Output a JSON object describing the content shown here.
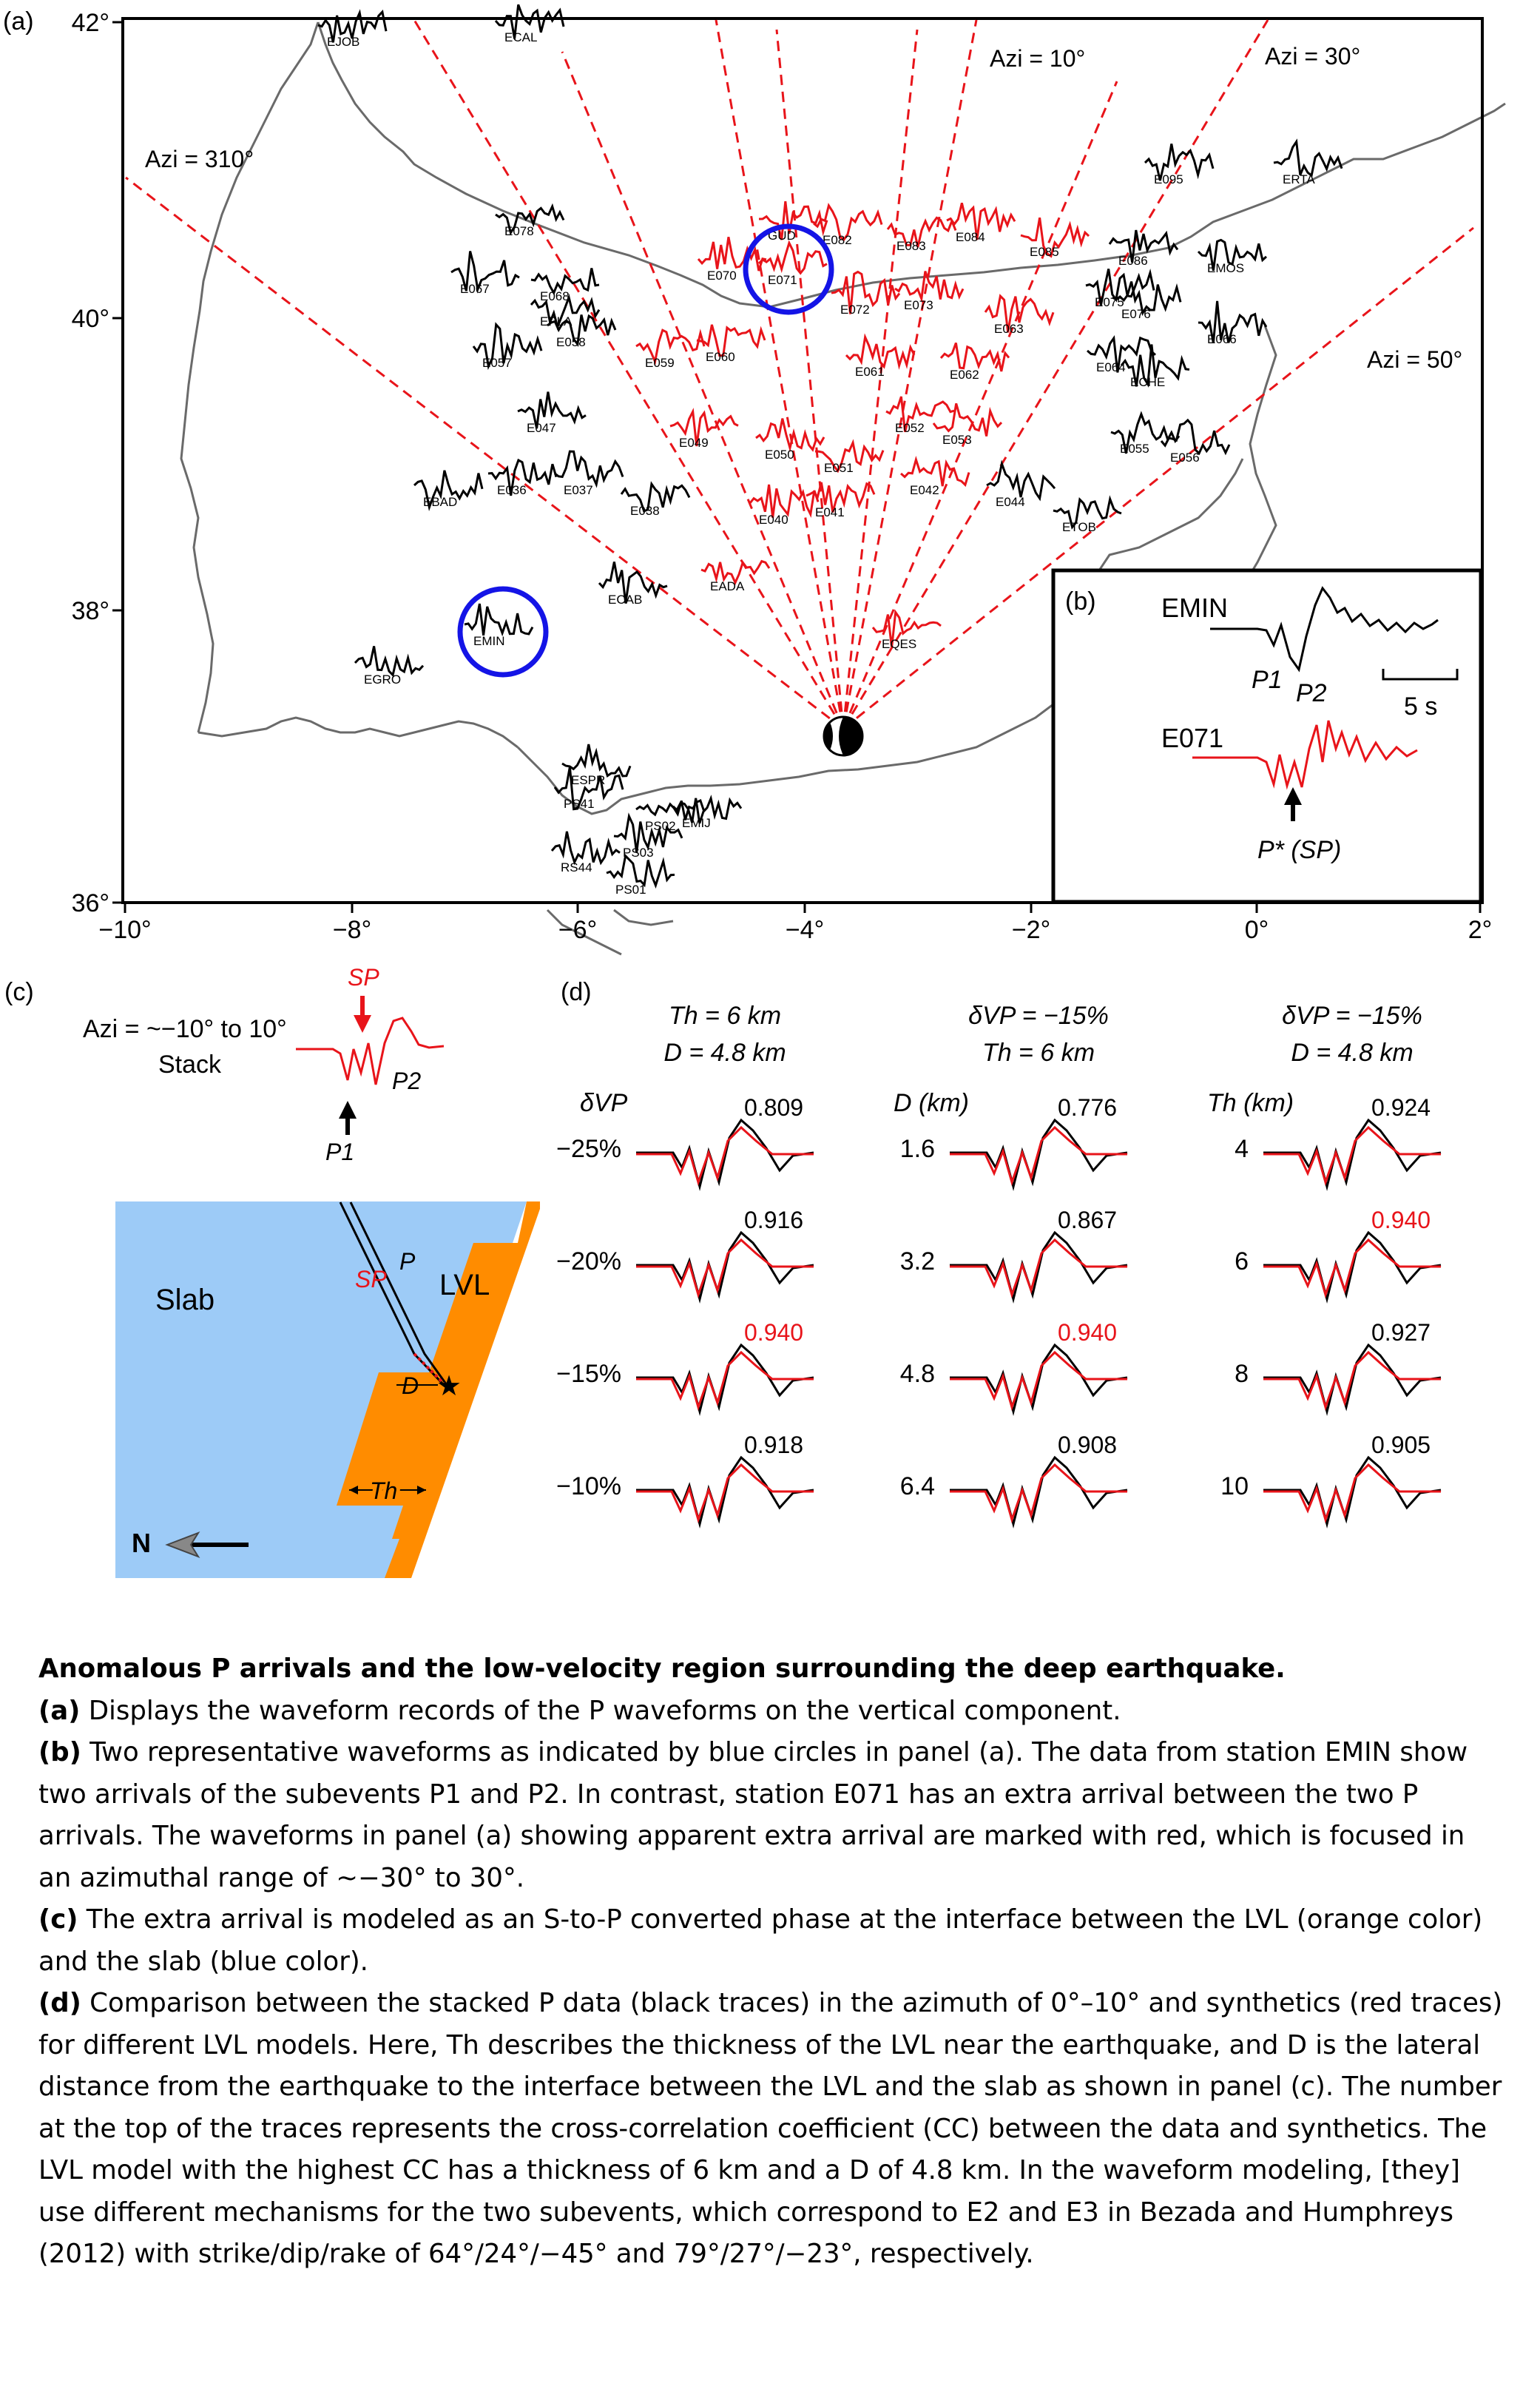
{
  "panel_a": {
    "label": "(a)",
    "lat_ticks": [
      "42°",
      "40°",
      "38°",
      "36°"
    ],
    "lon_ticks": [
      "−10°",
      "−8°",
      "−6°",
      "−4°",
      "−2°",
      "0°",
      "2°"
    ],
    "azimuth_labels": [
      "Azi = 310°",
      "Azi = 10°",
      "Azi = 30°",
      "Azi = 50°"
    ],
    "stations_black": [
      "EJOB",
      "ECAL",
      "E095",
      "ERTA",
      "E078",
      "E086",
      "E067",
      "E068",
      "EMOS",
      "EPLA",
      "E075",
      "E076",
      "E057",
      "E058",
      "E066",
      "E064",
      "ECHE",
      "E047",
      "E055",
      "E056",
      "EBAD",
      "E036",
      "E037",
      "E038",
      "E044",
      "ETOB",
      "ECAB",
      "EGRO",
      "EMIN",
      "ESPR",
      "PS41",
      "PS02",
      "PS03",
      "EMIJ",
      "RS44",
      "PS01"
    ],
    "stations_red": [
      "GUD",
      "E082",
      "E083",
      "E084",
      "E085",
      "E070",
      "E071",
      "E072",
      "E073",
      "E063",
      "E059",
      "E060",
      "E061",
      "E062",
      "E049",
      "E052",
      "E053",
      "E050",
      "E051",
      "E042",
      "E040",
      "E041",
      "EADA",
      "EQES"
    ]
  },
  "panel_b": {
    "label": "(b)",
    "station1": "EMIN",
    "p1": "P1",
    "p2": "P2",
    "scale": "5 s",
    "station2": "E071",
    "pstar": "P* (SP)"
  },
  "panel_c": {
    "label": "(c)",
    "azi": "Azi = ~−10° to 10°",
    "stack": "Stack",
    "sp": "SP",
    "p1": "P1",
    "p2": "P2",
    "slab": "Slab",
    "lvl": "LVL",
    "p_ray": "P",
    "sp_ray": "SP",
    "d": "D",
    "th": "Th",
    "north": "N",
    "colors": {
      "slab": "#9dcbf7",
      "lvl": "#ff8c00"
    }
  },
  "panel_d": {
    "label": "(d)",
    "columns": [
      {
        "header1": "Th = 6 km",
        "header2": "D = 4.8 km",
        "param": "δVP",
        "rows": [
          {
            "v": "−25%",
            "cc": "0.809",
            "best": false
          },
          {
            "v": "−20%",
            "cc": "0.916",
            "best": false
          },
          {
            "v": "−15%",
            "cc": "0.940",
            "best": true
          },
          {
            "v": "−10%",
            "cc": "0.918",
            "best": false
          }
        ]
      },
      {
        "header1": "δVP = −15%",
        "header2": "Th = 6 km",
        "param": "D (km)",
        "rows": [
          {
            "v": "1.6",
            "cc": "0.776",
            "best": false
          },
          {
            "v": "3.2",
            "cc": "0.867",
            "best": false
          },
          {
            "v": "4.8",
            "cc": "0.940",
            "best": true
          },
          {
            "v": "6.4",
            "cc": "0.908",
            "best": false
          }
        ]
      },
      {
        "header1": "δVP = −15%",
        "header2": "D = 4.8 km",
        "param": "Th (km)",
        "rows": [
          {
            "v": "4",
            "cc": "0.924",
            "best": false
          },
          {
            "v": "6",
            "cc": "0.940",
            "best": true
          },
          {
            "v": "8",
            "cc": "0.927",
            "best": false
          },
          {
            "v": "10",
            "cc": "0.905",
            "best": false
          }
        ]
      }
    ]
  },
  "caption": {
    "title": "Anomalous P arrivals and the low-velocity region surrounding the deep earthquake.",
    "a_label": "(a)",
    "a_text": " Displays the waveform records of the P waveforms on the vertical component.",
    "b_label": "(b)",
    "b_text": " Two representative waveforms as indicated by blue circles in panel (a). The data from station EMIN show two arrivals of the subevents P1 and P2. In contrast, station E071 has an extra arrival between the two P arrivals. The waveforms in panel (a) showing apparent extra arrival are marked with red, which is focused in an azimuthal range of ∼−30° to 30°.",
    "c_label": "(c)",
    "c_text": " The extra arrival is modeled as an S-to-P converted phase at the interface between the LVL (orange color) and the slab (blue color).",
    "d_label": "(d)",
    "d_text": " Comparison between the stacked P data (black traces) in the azimuth of 0°–10° and synthetics (red traces) for different LVL models. Here, Th describes the thickness of the LVL near the earthquake, and D is the lateral distance from the earthquake to the interface between the LVL and the slab as shown in panel (c). The number at the top of the traces represents the cross-correlation coefficient (CC) between the data and synthetics. The LVL model with the highest CC has a thickness of 6 km and a D of 4.8 km. In the waveform modeling, [they] use different mechanisms for the two subevents, which correspond to E2 and E3 in Bezada and Humphreys (2012) with strike/dip/rake of 64°/24°/−45° and 79°/27°/−23°, respectively."
  },
  "colors": {
    "red": "#e8141a",
    "blue": "#1414e6",
    "coast": "#6a6a6a"
  }
}
